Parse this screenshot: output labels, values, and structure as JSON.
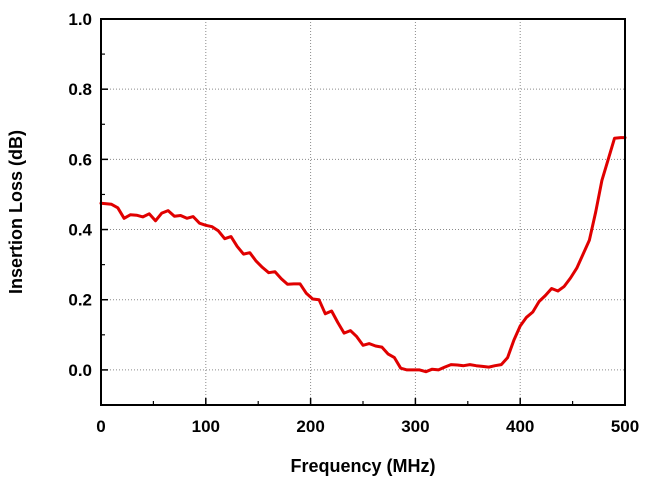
{
  "chart_data": {
    "type": "line",
    "title": "",
    "xlabel": "Frequency (MHz)",
    "ylabel": "Insertion Loss (dB)",
    "xlim": [
      0,
      500
    ],
    "ylim": [
      -0.1,
      1.0
    ],
    "xticks": [
      0,
      100,
      200,
      300,
      400,
      500
    ],
    "xtick_labels": [
      "0",
      "100",
      "200",
      "300",
      "400",
      "500"
    ],
    "yticks": [
      0.0,
      0.2,
      0.4,
      0.6,
      0.8,
      1.0
    ],
    "ytick_labels": [
      "0.0",
      "0.2",
      "0.4",
      "0.6",
      "0.8",
      "1.0"
    ],
    "grid": true,
    "grid_style": "dotted",
    "legend": "none",
    "series": [
      {
        "color": "#e00000",
        "x": [
          0,
          10,
          16,
          22,
          28,
          34,
          40,
          46,
          52,
          58,
          64,
          70,
          76,
          82,
          88,
          94,
          100,
          106,
          112,
          118,
          124,
          130,
          136,
          142,
          148,
          154,
          160,
          166,
          172,
          178,
          184,
          190,
          196,
          202,
          208,
          214,
          220,
          226,
          232,
          238,
          244,
          250,
          256,
          262,
          268,
          274,
          280,
          286,
          292,
          298,
          304,
          310,
          316,
          322,
          328,
          334,
          340,
          346,
          352,
          358,
          364,
          370,
          376,
          382,
          388,
          394,
          400,
          406,
          412,
          418,
          424,
          430,
          436,
          442,
          448,
          454,
          460,
          466,
          472,
          478,
          484,
          490,
          496,
          500
        ],
        "y": [
          0.475,
          0.472,
          0.462,
          0.432,
          0.442,
          0.441,
          0.436,
          0.445,
          0.425,
          0.447,
          0.454,
          0.438,
          0.44,
          0.432,
          0.437,
          0.418,
          0.412,
          0.408,
          0.396,
          0.374,
          0.38,
          0.352,
          0.33,
          0.334,
          0.31,
          0.292,
          0.277,
          0.28,
          0.26,
          0.244,
          0.245,
          0.245,
          0.218,
          0.202,
          0.2,
          0.16,
          0.168,
          0.135,
          0.105,
          0.112,
          0.095,
          0.07,
          0.075,
          0.068,
          0.065,
          0.045,
          0.035,
          0.005,
          0.0,
          0.0,
          0.0,
          -0.005,
          0.002,
          0.0,
          0.008,
          0.015,
          0.014,
          0.012,
          0.015,
          0.012,
          0.01,
          0.008,
          0.012,
          0.015,
          0.035,
          0.085,
          0.125,
          0.15,
          0.165,
          0.195,
          0.212,
          0.232,
          0.225,
          0.238,
          0.262,
          0.29,
          0.33,
          0.37,
          0.45,
          0.54,
          0.6,
          0.66,
          0.662,
          0.662
        ]
      }
    ]
  }
}
